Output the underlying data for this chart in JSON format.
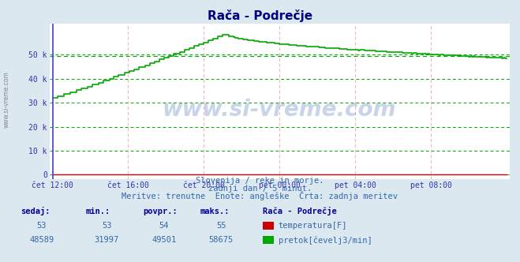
{
  "title": "Rača - Podrečje",
  "title_color": "#000080",
  "bg_color": "#dce8f0",
  "plot_bg_color": "#ffffff",
  "grid_color_h": "#00aa00",
  "grid_color_v": "#ffaaaa",
  "line_color_flow": "#00aa00",
  "line_color_temp": "#cc0000",
  "x_tick_labels": [
    "čet 12:00",
    "čet 16:00",
    "čet 20:00",
    "pet 00:00",
    "pet 04:00",
    "pet 08:00"
  ],
  "x_tick_positions": [
    0,
    48,
    96,
    144,
    192,
    240
  ],
  "y_ticks": [
    0,
    10000,
    20000,
    30000,
    40000,
    50000
  ],
  "y_tick_labels": [
    "0",
    "10 k",
    "20 k",
    "30 k",
    "40 k",
    "50 k"
  ],
  "ylim": [
    -2000,
    63000
  ],
  "xlim": [
    -2,
    290
  ],
  "watermark": "www.si-vreme.com",
  "sub1": "Slovenija / reke in morje.",
  "sub2": "zadnji dan / 5 minut.",
  "sub3": "Meritve: trenutne  Enote: angleške  Črta: zadnja meritev",
  "footer_label1": "sedaj:",
  "footer_label2": "min.:",
  "footer_label3": "povpr.:",
  "footer_label4": "maks.:",
  "footer_label5": "Rača - Podrečje",
  "row1": [
    "53",
    "53",
    "54",
    "55"
  ],
  "row2": [
    "48589",
    "31997",
    "49501",
    "58675"
  ],
  "legend1": "temperatura[F]",
  "legend2": "pretok[čevelj3/min]",
  "avg_flow": 49501,
  "n_points": 289,
  "left_label": "www.si-vreme.com"
}
